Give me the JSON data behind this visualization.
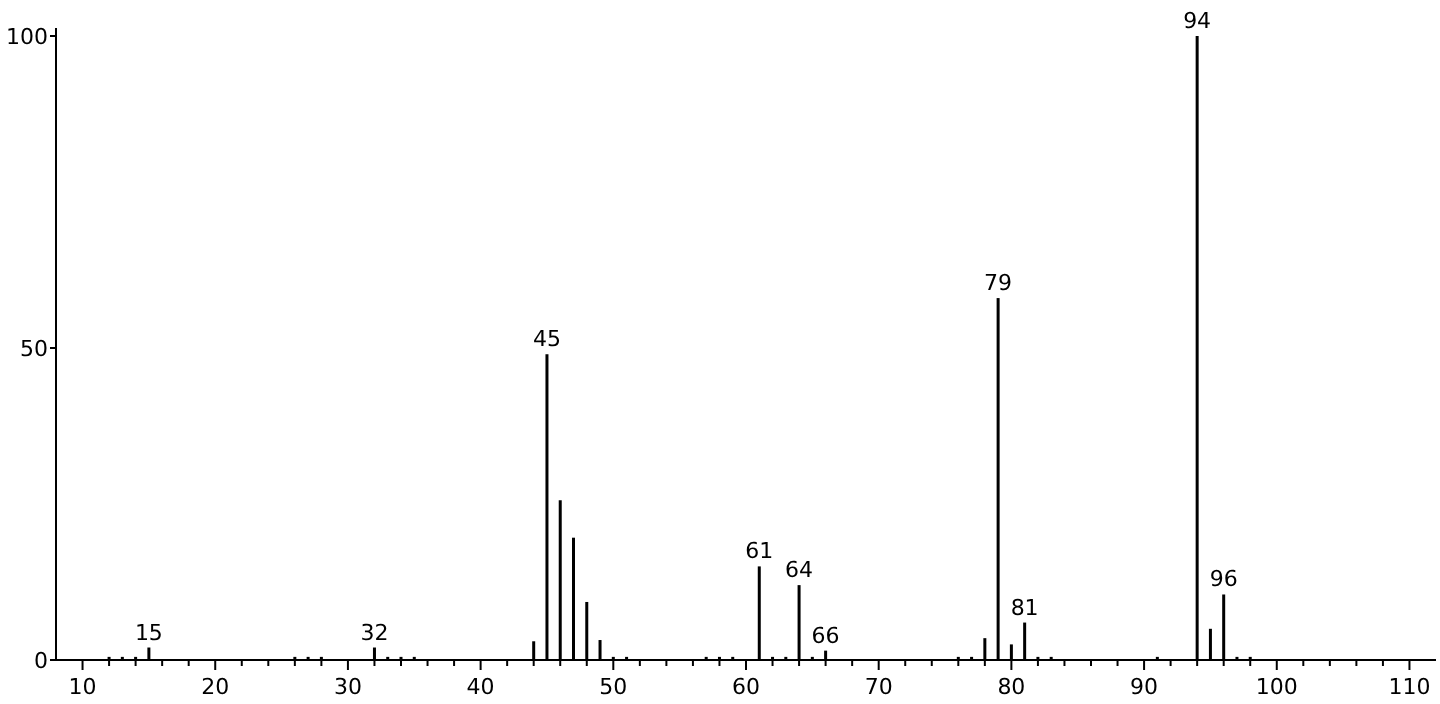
{
  "chart_data": {
    "type": "bar",
    "x": [
      12,
      13,
      14,
      15,
      26,
      27,
      28,
      32,
      33,
      34,
      35,
      44,
      45,
      46,
      47,
      48,
      49,
      50,
      51,
      57,
      58,
      59,
      61,
      62,
      63,
      64,
      65,
      66,
      76,
      77,
      78,
      79,
      80,
      81,
      82,
      83,
      91,
      94,
      95,
      96,
      97,
      98
    ],
    "values": [
      0.5,
      0.5,
      0.5,
      2,
      0.5,
      0.5,
      0.5,
      2,
      0.5,
      0.5,
      0.5,
      3,
      49,
      25.6,
      19.6,
      9.3,
      3.2,
      0.5,
      0.5,
      0.5,
      0.5,
      0.5,
      15,
      0.5,
      0.5,
      12,
      0.5,
      1.5,
      0.5,
      0.5,
      3.5,
      58,
      2.5,
      6,
      0.5,
      0.5,
      0.5,
      100,
      5,
      10.5,
      0.5,
      0.5
    ],
    "color": "#000000",
    "xlim": [
      8,
      112
    ],
    "xticks": [
      {
        "value": 10,
        "label": "10"
      },
      {
        "value": 12,
        "label": null
      },
      {
        "value": 14,
        "label": null
      },
      {
        "value": 16,
        "label": null
      },
      {
        "value": 18,
        "label": null
      },
      {
        "value": 20,
        "label": "20"
      },
      {
        "value": 22,
        "label": null
      },
      {
        "value": 24,
        "label": null
      },
      {
        "value": 26,
        "label": null
      },
      {
        "value": 28,
        "label": null
      },
      {
        "value": 30,
        "label": "30"
      },
      {
        "value": 32,
        "label": null
      },
      {
        "value": 34,
        "label": null
      },
      {
        "value": 36,
        "label": null
      },
      {
        "value": 38,
        "label": null
      },
      {
        "value": 40,
        "label": "40"
      },
      {
        "value": 42,
        "label": null
      },
      {
        "value": 44,
        "label": null
      },
      {
        "value": 46,
        "label": null
      },
      {
        "value": 48,
        "label": null
      },
      {
        "value": 50,
        "label": "50"
      },
      {
        "value": 52,
        "label": null
      },
      {
        "value": 54,
        "label": null
      },
      {
        "value": 56,
        "label": null
      },
      {
        "value": 58,
        "label": null
      },
      {
        "value": 60,
        "label": "60"
      },
      {
        "value": 62,
        "label": null
      },
      {
        "value": 64,
        "label": null
      },
      {
        "value": 66,
        "label": null
      },
      {
        "value": 68,
        "label": null
      },
      {
        "value": 70,
        "label": "70"
      },
      {
        "value": 72,
        "label": null
      },
      {
        "value": 74,
        "label": null
      },
      {
        "value": 76,
        "label": null
      },
      {
        "value": 78,
        "label": null
      },
      {
        "value": 80,
        "label": "80"
      },
      {
        "value": 82,
        "label": null
      },
      {
        "value": 84,
        "label": null
      },
      {
        "value": 86,
        "label": null
      },
      {
        "value": 88,
        "label": null
      },
      {
        "value": 90,
        "label": "90"
      },
      {
        "value": 92,
        "label": null
      },
      {
        "value": 94,
        "label": null
      },
      {
        "value": 96,
        "label": null
      },
      {
        "value": 98,
        "label": null
      },
      {
        "value": 100,
        "label": "100"
      },
      {
        "value": 102,
        "label": null
      },
      {
        "value": 104,
        "label": null
      },
      {
        "value": 106,
        "label": null
      },
      {
        "value": 108,
        "label": null
      },
      {
        "value": 110,
        "label": "110"
      }
    ],
    "ylim": [
      0,
      100
    ],
    "yticks": [
      0,
      50,
      100
    ],
    "annotations": [
      {
        "text": "15",
        "x": 15,
        "y": 2
      },
      {
        "text": "32",
        "x": 32,
        "y": 2
      },
      {
        "text": "45",
        "x": 45,
        "y": 49
      },
      {
        "text": "61",
        "x": 61,
        "y": 15
      },
      {
        "text": "64",
        "x": 64,
        "y": 12
      },
      {
        "text": "66",
        "x": 66,
        "y": 1.5
      },
      {
        "text": "79",
        "x": 79,
        "y": 58
      },
      {
        "text": "81",
        "x": 81,
        "y": 6
      },
      {
        "text": "94",
        "x": 94,
        "y": 100
      },
      {
        "text": "96",
        "x": 96,
        "y": 10.5
      }
    ]
  }
}
